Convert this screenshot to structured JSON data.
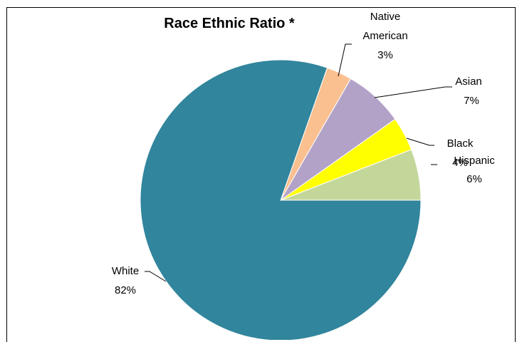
{
  "chart_data": {
    "type": "pie",
    "title": "Race Ethnic Ratio *",
    "slices": [
      {
        "name": "Hispanic",
        "value": 6,
        "label_pct": "6%",
        "color": "#C4D79B"
      },
      {
        "name": "Black",
        "value": 4,
        "label_pct": "4%",
        "color": "#FFFF00"
      },
      {
        "name": "Asian",
        "value": 7,
        "label_pct": "7%",
        "color": "#B3A2C7"
      },
      {
        "name": "Native American",
        "value": 3,
        "label_pct": "3%",
        "color": "#FAC090"
      },
      {
        "name": "White",
        "value": 82,
        "label_pct": "82%",
        "color": "#31859C"
      }
    ],
    "start_angle_deg": 0,
    "direction": "counterclockwise",
    "legend": "none"
  }
}
